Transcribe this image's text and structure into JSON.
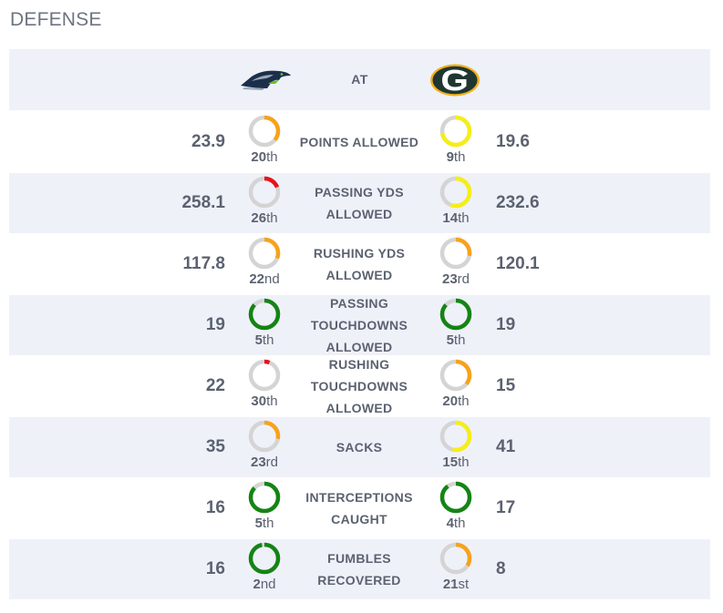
{
  "section": {
    "title": "DEFENSE"
  },
  "header": {
    "at_label": "AT",
    "away_team_logo": "seahawks-logo",
    "home_team_logo": "packers-logo"
  },
  "colors": {
    "track": "#d4d4d4",
    "green": "#148414",
    "yellow": "#f5ee17",
    "orange": "#f7a21b",
    "red": "#e8121b"
  },
  "stats": [
    {
      "label": "POINTS ALLOWED",
      "away": {
        "value": "23.9",
        "rank": "20",
        "suffix": "th",
        "color": "#f7a21b",
        "fill": 0.36
      },
      "home": {
        "value": "19.6",
        "rank": "9",
        "suffix": "th",
        "color": "#f5ee17",
        "fill": 0.73
      }
    },
    {
      "label": "PASSING YDS ALLOWED",
      "away": {
        "value": "258.1",
        "rank": "26",
        "suffix": "th",
        "color": "#e8121b",
        "fill": 0.19
      },
      "home": {
        "value": "232.6",
        "rank": "14",
        "suffix": "th",
        "color": "#f5ee17",
        "fill": 0.56
      }
    },
    {
      "label": "RUSHING YDS ALLOWED",
      "away": {
        "value": "117.8",
        "rank": "22",
        "suffix": "nd",
        "color": "#f7a21b",
        "fill": 0.31
      },
      "home": {
        "value": "120.1",
        "rank": "23",
        "suffix": "rd",
        "color": "#f7a21b",
        "fill": 0.28
      }
    },
    {
      "label": "PASSING TOUCHDOWNS ALLOWED",
      "away": {
        "value": "19",
        "rank": "5",
        "suffix": "th",
        "color": "#148414",
        "fill": 0.87
      },
      "home": {
        "value": "19",
        "rank": "5",
        "suffix": "th",
        "color": "#148414",
        "fill": 0.87
      }
    },
    {
      "label": "RUSHING TOUCHDOWNS ALLOWED",
      "away": {
        "value": "22",
        "rank": "30",
        "suffix": "th",
        "color": "#e8121b",
        "fill": 0.06
      },
      "home": {
        "value": "15",
        "rank": "20",
        "suffix": "th",
        "color": "#f7a21b",
        "fill": 0.36
      }
    },
    {
      "label": "SACKS",
      "away": {
        "value": "35",
        "rank": "23",
        "suffix": "rd",
        "color": "#f7a21b",
        "fill": 0.28
      },
      "home": {
        "value": "41",
        "rank": "15",
        "suffix": "th",
        "color": "#f5ee17",
        "fill": 0.54
      }
    },
    {
      "label": "INTERCEPTIONS CAUGHT",
      "away": {
        "value": "16",
        "rank": "5",
        "suffix": "th",
        "color": "#148414",
        "fill": 0.87
      },
      "home": {
        "value": "17",
        "rank": "4",
        "suffix": "th",
        "color": "#148414",
        "fill": 0.9
      }
    },
    {
      "label": "FUMBLES RECOVERED",
      "away": {
        "value": "16",
        "rank": "2",
        "suffix": "nd",
        "color": "#148414",
        "fill": 0.97
      },
      "home": {
        "value": "8",
        "rank": "21",
        "suffix": "st",
        "color": "#f7a21b",
        "fill": 0.34
      }
    }
  ]
}
